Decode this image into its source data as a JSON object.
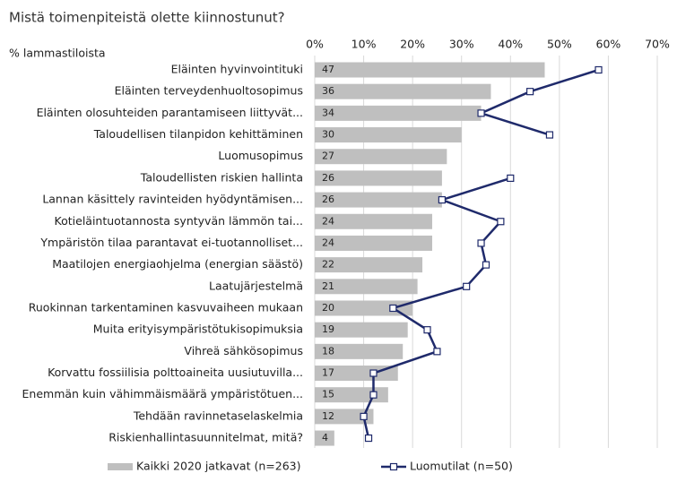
{
  "chart_data": {
    "type": "bar",
    "orientation": "horizontal",
    "title": "Mistä toimenpiteistä olette kiinnostunut?",
    "subtitle": "% lammastiloista",
    "categories": [
      "Eläinten hyvinvointituki",
      "Eläinten terveydenhuoltosopimus",
      "Eläinten olosuhteiden parantamiseen liittyvät...",
      "Taloudellisen tilanpidon kehittäminen",
      "Luomusopimus",
      "Taloudellisten riskien hallinta",
      "Lannan käsittely ravinteiden hyödyntämisen...",
      "Kotieläintuotannosta syntyvän lämmön tai...",
      "Ympäristön tilaa parantavat ei-tuotannolliset...",
      "Maatilojen energiaohjelma (energian säästö)",
      "Laatujärjestelmä",
      "Ruokinnan tarkentaminen kasvuvaiheen mukaan",
      "Muita erityisympäristötukisopimuksia",
      "Vihreä sähkösopimus",
      "Korvattu fossiilisia polttoaineita uusiutuvilla...",
      "Enemmän kuin vähimmäismäärä ympäristötuen...",
      "Tehdään ravinnetaselaskelmia",
      "Riskienhallintasuunnitelmat, mitä?"
    ],
    "series": [
      {
        "name": "Kaikki 2020 jatkavat (n=263)",
        "type": "bar",
        "color": "#bfbfbf",
        "values": [
          47,
          36,
          34,
          30,
          27,
          26,
          26,
          24,
          24,
          22,
          21,
          20,
          19,
          18,
          17,
          15,
          12,
          4
        ]
      },
      {
        "name": "Luomutilat (n=50)",
        "type": "line",
        "color": "#1f2a6b",
        "values": [
          58,
          44,
          34,
          48,
          null,
          40,
          26,
          38,
          34,
          35,
          31,
          16,
          23,
          25,
          12,
          12,
          10,
          11
        ]
      }
    ],
    "xlim": [
      0,
      70
    ],
    "xticks": [
      {
        "value": 0,
        "label": "0%"
      },
      {
        "value": 10,
        "label": "10%"
      },
      {
        "value": 20,
        "label": "20%"
      },
      {
        "value": 30,
        "label": "30%"
      },
      {
        "value": 40,
        "label": "40%"
      },
      {
        "value": 50,
        "label": "50%"
      },
      {
        "value": 60,
        "label": "60%"
      },
      {
        "value": 70,
        "label": "70%"
      }
    ],
    "grid": true,
    "legend": "bottom"
  }
}
